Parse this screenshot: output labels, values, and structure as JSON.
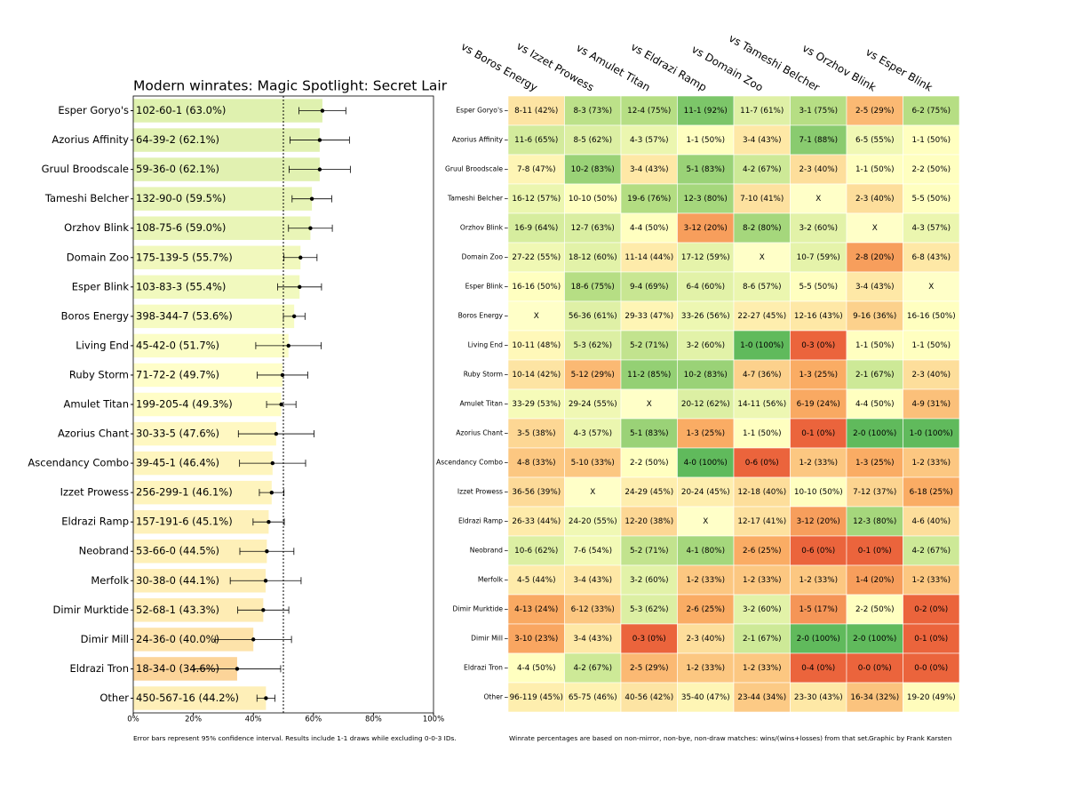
{
  "chart_data": [
    {
      "type": "barh",
      "title": "Modern winrates: Magic Spotlight: Secret Lair",
      "categories": [
        "Esper Goryo's",
        "Azorius Affinity",
        "Gruul Broodscale",
        "Tameshi Belcher",
        "Orzhov Blink",
        "Domain Zoo",
        "Esper Blink",
        "Boros Energy",
        "Living End",
        "Ruby Storm",
        "Amulet Titan",
        "Azorius Chant",
        "Ascendancy Combo",
        "Izzet Prowess",
        "Eldrazi Ramp",
        "Neobrand",
        "Merfolk",
        "Dimir Murktide",
        "Dimir Mill",
        "Eldrazi Tron",
        "Other"
      ],
      "values": [
        63.0,
        62.1,
        62.1,
        59.5,
        59.0,
        55.7,
        55.4,
        53.6,
        51.7,
        49.7,
        49.3,
        47.6,
        46.4,
        46.1,
        45.1,
        44.5,
        44.1,
        43.3,
        40.0,
        34.6,
        44.2
      ],
      "value_labels": [
        "102-60-1 (63.0%)",
        "64-39-2 (62.1%)",
        "59-36-0 (62.1%)",
        "132-90-0 (59.5%)",
        "108-75-6 (59.0%)",
        "175-139-5 (55.7%)",
        "103-83-3 (55.4%)",
        "398-344-7 (53.6%)",
        "45-42-0 (51.7%)",
        "71-72-2 (49.7%)",
        "199-205-4 (49.3%)",
        "30-33-5 (47.6%)",
        "39-45-1 (46.4%)",
        "256-299-1 (46.1%)",
        "157-191-6 (45.1%)",
        "53-66-0 (44.5%)",
        "30-38-0 (44.1%)",
        "52-68-1 (43.3%)",
        "24-36-0 (40.0%)",
        "18-34-0 (34.6%)",
        "450-567-16 (44.2%)"
      ],
      "errors": [
        7.8,
        9.9,
        10.2,
        6.6,
        7.3,
        5.5,
        7.3,
        3.6,
        10.9,
        8.4,
        4.9,
        12.6,
        11.0,
        4.1,
        5.2,
        9.0,
        11.8,
        8.5,
        12.7,
        14.5,
        3.0
      ],
      "xlim": [
        0,
        100
      ],
      "xticks": [
        {
          "value": 0,
          "label": "0%"
        },
        {
          "value": 20,
          "label": "20%"
        },
        {
          "value": 40,
          "label": "40%"
        },
        {
          "value": 60,
          "label": "60%"
        },
        {
          "value": 80,
          "label": "80%"
        },
        {
          "value": 100,
          "label": "100%"
        }
      ],
      "reference_line": 50,
      "note": "Error bars represent 95% confidence interval. Results include 1-1 draws while excluding 0-0-3 IDs."
    },
    {
      "type": "heatmap",
      "categories": [
        "Esper Goryo's",
        "Azorius Affinity",
        "Gruul Broodscale",
        "Tameshi Belcher",
        "Orzhov Blink",
        "Domain Zoo",
        "Esper Blink",
        "Boros Energy",
        "Living End",
        "Ruby Storm",
        "Amulet Titan",
        "Azorius Chant",
        "Ascendancy Combo",
        "Izzet Prowess",
        "Eldrazi Ramp",
        "Neobrand",
        "Merfolk",
        "Dimir Murktide",
        "Dimir Mill",
        "Eldrazi Tron",
        "Other"
      ],
      "columns": [
        "vs Boros Energy",
        "vs Izzet Prowess",
        "vs Amulet Titan",
        "vs Eldrazi Ramp",
        "vs Domain Zoo",
        "vs Tameshi Belcher",
        "vs Orzhov Blink",
        "vs Esper Blink"
      ],
      "values": [
        [
          42,
          73,
          75,
          92,
          61,
          75,
          29,
          75
        ],
        [
          65,
          62,
          57,
          50,
          43,
          88,
          55,
          50
        ],
        [
          47,
          83,
          43,
          83,
          67,
          40,
          50,
          50
        ],
        [
          57,
          50,
          76,
          80,
          41,
          null,
          40,
          50
        ],
        [
          64,
          63,
          50,
          20,
          80,
          60,
          null,
          57
        ],
        [
          55,
          60,
          44,
          59,
          null,
          59,
          20,
          43
        ],
        [
          50,
          75,
          69,
          60,
          57,
          50,
          43,
          null
        ],
        [
          null,
          61,
          47,
          56,
          45,
          43,
          36,
          50
        ],
        [
          48,
          62,
          71,
          60,
          100,
          0,
          50,
          50
        ],
        [
          42,
          29,
          85,
          83,
          36,
          25,
          67,
          40
        ],
        [
          53,
          55,
          null,
          62,
          56,
          24,
          50,
          31
        ],
        [
          38,
          57,
          83,
          25,
          50,
          0,
          100,
          100
        ],
        [
          33,
          33,
          50,
          100,
          0,
          33,
          25,
          33
        ],
        [
          39,
          null,
          45,
          45,
          40,
          50,
          37,
          25
        ],
        [
          44,
          55,
          38,
          null,
          41,
          20,
          80,
          40
        ],
        [
          62,
          54,
          71,
          80,
          25,
          0,
          0,
          67
        ],
        [
          44,
          43,
          60,
          33,
          33,
          33,
          20,
          33
        ],
        [
          24,
          33,
          62,
          25,
          60,
          17,
          50,
          0
        ],
        [
          23,
          43,
          0,
          40,
          67,
          100,
          100,
          0
        ],
        [
          50,
          67,
          29,
          33,
          33,
          0,
          0,
          0
        ],
        [
          45,
          46,
          42,
          47,
          34,
          43,
          32,
          49
        ]
      ],
      "value_labels": [
        [
          "8-11 (42%)",
          "8-3 (73%)",
          "12-4 (75%)",
          "11-1 (92%)",
          "11-7 (61%)",
          "3-1 (75%)",
          "2-5 (29%)",
          "6-2 (75%)"
        ],
        [
          "11-6 (65%)",
          "8-5 (62%)",
          "4-3 (57%)",
          "1-1 (50%)",
          "3-4 (43%)",
          "7-1 (88%)",
          "6-5 (55%)",
          "1-1 (50%)"
        ],
        [
          "7-8 (47%)",
          "10-2 (83%)",
          "3-4 (43%)",
          "5-1 (83%)",
          "4-2 (67%)",
          "2-3 (40%)",
          "1-1 (50%)",
          "2-2 (50%)"
        ],
        [
          "16-12 (57%)",
          "10-10 (50%)",
          "19-6 (76%)",
          "12-3 (80%)",
          "7-10 (41%)",
          "X",
          "2-3 (40%)",
          "5-5 (50%)"
        ],
        [
          "16-9 (64%)",
          "12-7 (63%)",
          "4-4 (50%)",
          "3-12 (20%)",
          "8-2 (80%)",
          "3-2 (60%)",
          "X",
          "4-3 (57%)"
        ],
        [
          "27-22 (55%)",
          "18-12 (60%)",
          "11-14 (44%)",
          "17-12 (59%)",
          "X",
          "10-7 (59%)",
          "2-8 (20%)",
          "6-8 (43%)"
        ],
        [
          "16-16 (50%)",
          "18-6 (75%)",
          "9-4 (69%)",
          "6-4 (60%)",
          "8-6 (57%)",
          "5-5 (50%)",
          "3-4 (43%)",
          "X"
        ],
        [
          "X",
          "56-36 (61%)",
          "29-33 (47%)",
          "33-26 (56%)",
          "22-27 (45%)",
          "12-16 (43%)",
          "9-16 (36%)",
          "16-16 (50%)"
        ],
        [
          "10-11 (48%)",
          "5-3 (62%)",
          "5-2 (71%)",
          "3-2 (60%)",
          "1-0 (100%)",
          "0-3 (0%)",
          "1-1 (50%)",
          "1-1 (50%)"
        ],
        [
          "10-14 (42%)",
          "5-12 (29%)",
          "11-2 (85%)",
          "10-2 (83%)",
          "4-7 (36%)",
          "1-3 (25%)",
          "2-1 (67%)",
          "2-3 (40%)"
        ],
        [
          "33-29 (53%)",
          "29-24 (55%)",
          "X",
          "20-12 (62%)",
          "14-11 (56%)",
          "6-19 (24%)",
          "4-4 (50%)",
          "4-9 (31%)"
        ],
        [
          "3-5 (38%)",
          "4-3 (57%)",
          "5-1 (83%)",
          "1-3 (25%)",
          "1-1 (50%)",
          "0-1 (0%)",
          "2-0 (100%)",
          "1-0 (100%)"
        ],
        [
          "4-8 (33%)",
          "5-10 (33%)",
          "2-2 (50%)",
          "4-0 (100%)",
          "0-6 (0%)",
          "1-2 (33%)",
          "1-3 (25%)",
          "1-2 (33%)"
        ],
        [
          "36-56 (39%)",
          "X",
          "24-29 (45%)",
          "20-24 (45%)",
          "12-18 (40%)",
          "10-10 (50%)",
          "7-12 (37%)",
          "6-18 (25%)"
        ],
        [
          "26-33 (44%)",
          "24-20 (55%)",
          "12-20 (38%)",
          "X",
          "12-17 (41%)",
          "3-12 (20%)",
          "12-3 (80%)",
          "4-6 (40%)"
        ],
        [
          "10-6 (62%)",
          "7-6 (54%)",
          "5-2 (71%)",
          "4-1 (80%)",
          "2-6 (25%)",
          "0-6 (0%)",
          "0-1 (0%)",
          "4-2 (67%)"
        ],
        [
          "4-5 (44%)",
          "3-4 (43%)",
          "3-2 (60%)",
          "1-2 (33%)",
          "1-2 (33%)",
          "1-2 (33%)",
          "1-4 (20%)",
          "1-2 (33%)"
        ],
        [
          "4-13 (24%)",
          "6-12 (33%)",
          "5-3 (62%)",
          "2-6 (25%)",
          "3-2 (60%)",
          "1-5 (17%)",
          "2-2 (50%)",
          "0-2 (0%)"
        ],
        [
          "3-10 (23%)",
          "3-4 (43%)",
          "0-3 (0%)",
          "2-3 (40%)",
          "2-1 (67%)",
          "2-0 (100%)",
          "2-0 (100%)",
          "0-1 (0%)"
        ],
        [
          "4-4 (50%)",
          "4-2 (67%)",
          "2-5 (29%)",
          "1-2 (33%)",
          "1-2 (33%)",
          "0-4 (0%)",
          "0-0 (0%)",
          "0-0 (0%)"
        ],
        [
          "96-119 (45%)",
          "65-75 (46%)",
          "40-56 (42%)",
          "35-40 (47%)",
          "23-44 (34%)",
          "23-30 (43%)",
          "16-34 (32%)",
          "19-20 (49%)"
        ]
      ],
      "note": "Winrate percentages are based on non-mirror, non-bye, non-draw matches: wins/(wins+losses) from that set.",
      "credit": "Graphic by Frank Karsten"
    }
  ]
}
